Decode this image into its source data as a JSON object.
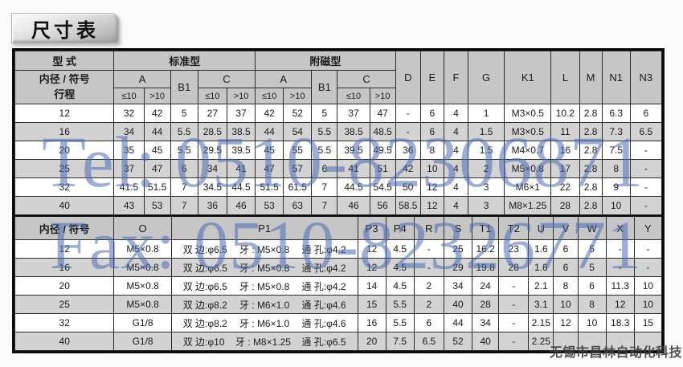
{
  "page_title": "尺寸表",
  "watermarks": {
    "tel": "Tel: 0510-82306871",
    "fax": "Fax: 0510-82326771",
    "company": "无锡市昌林自动化科技",
    "blue_color": "#4d6cb4"
  },
  "table": {
    "section1": {
      "header": {
        "type_label": "型 式",
        "bore_label": "内径 / 符号",
        "stroke_label": "行程",
        "standard_label": "标准型",
        "magnet_label": "附磁型",
        "a_label": "A",
        "b1_label": "B1",
        "c_label": "C",
        "le10": "≤10",
        "gt10": ">10",
        "simple_cols": [
          "D",
          "E",
          "F",
          "G",
          "K1",
          "L",
          "M",
          "N1",
          "N3"
        ]
      },
      "rows": [
        {
          "bore": "12",
          "cells": [
            "32",
            "42",
            "5",
            "27",
            "37",
            "42",
            "52",
            "5",
            "37",
            "47",
            "-",
            "6",
            "4",
            "1",
            "M3×0.5",
            "10.2",
            "2.8",
            "6.3",
            "6"
          ]
        },
        {
          "bore": "16",
          "cells": [
            "34",
            "44",
            "5.5",
            "28.5",
            "38.5",
            "44",
            "54",
            "5.5",
            "38.5",
            "48.5",
            "-",
            "6",
            "4",
            "1.5",
            "M3×0.5",
            "11",
            "2.8",
            "7.3",
            "6.5"
          ]
        },
        {
          "bore": "20",
          "cells": [
            "35",
            "45",
            "5.5",
            "29.5",
            "39.5",
            "45",
            "55",
            "5.5",
            "39.5",
            "49.5",
            "36",
            "8",
            "4",
            "1.5",
            "M4×0.7",
            "16",
            "2.8",
            "7.5",
            "-"
          ]
        },
        {
          "bore": "25",
          "cells": [
            "37",
            "47",
            "6",
            "34",
            "41",
            "47",
            "57",
            "6",
            "41",
            "51",
            "42",
            "10",
            "4",
            "2",
            "M5×0.8",
            "17",
            "2.8",
            "8",
            "-"
          ]
        },
        {
          "bore": "32",
          "cells": [
            "41.5",
            "51.5",
            "7",
            "34.5",
            "44.5",
            "51.5",
            "61.5",
            "7",
            "44.5",
            "54.5",
            "50",
            "12",
            "4",
            "3",
            "M6×1",
            "22",
            "2.8",
            "9",
            "-"
          ]
        },
        {
          "bore": "40",
          "cells": [
            "43",
            "53",
            "7",
            "36",
            "46",
            "53",
            "63",
            "7",
            "46",
            "56",
            "58.5",
            "12",
            "4",
            "3",
            "M8×1.25",
            "28",
            "2.8",
            "10",
            "-"
          ]
        }
      ]
    },
    "section2": {
      "header": [
        "内径 / 符号",
        "O",
        "P1",
        "P3",
        "P4",
        "R",
        "S",
        "T1",
        "T2",
        "U",
        "V",
        "W",
        "X",
        "Y"
      ],
      "rows": [
        {
          "bore": "12",
          "o": "M5×0.8",
          "p1": [
            "双 边:φ6.5",
            "牙 : M5×0.8",
            "通 孔:φ4.2"
          ],
          "cells": [
            "12",
            "4.5",
            "-",
            "25",
            "16.2",
            "23",
            "1.6",
            "6",
            "5",
            "-",
            "-"
          ]
        },
        {
          "bore": "16",
          "o": "M5×0.8",
          "p1": [
            "双 边:φ6.5",
            "牙 : M5×0.8",
            "通 孔:φ4.2"
          ],
          "cells": [
            "12",
            "4.5",
            "-",
            "29",
            "19.8",
            "28",
            "1.6",
            "6",
            "5",
            "-",
            "-"
          ]
        },
        {
          "bore": "20",
          "o": "M5×0.8",
          "p1": [
            "双 边:φ6.5",
            "牙 : M5×0.8",
            "通 孔:φ4.2"
          ],
          "cells": [
            "14",
            "4.5",
            "2",
            "34",
            "24",
            "-",
            "2.1",
            "8",
            "6",
            "11.3",
            "10"
          ]
        },
        {
          "bore": "25",
          "o": "M5×0.8",
          "p1": [
            "双 边:φ8.2",
            "牙 : M6×1.0",
            "通 孔:φ4.6"
          ],
          "cells": [
            "15",
            "5.5",
            "2",
            "40",
            "28",
            "-",
            "3.1",
            "10",
            "8",
            "12",
            "10"
          ]
        },
        {
          "bore": "32",
          "o": "G1/8",
          "p1": [
            "双 边:φ8.2",
            "牙 : M6×1.0",
            "通 孔:φ4.6"
          ],
          "cells": [
            "16",
            "5.5",
            "6",
            "44",
            "34",
            "-",
            "2.15",
            "12",
            "10",
            "18.3",
            "15"
          ]
        },
        {
          "bore": "40",
          "o": "G1/8",
          "p1": [
            "双 边:φ10",
            "牙 : M8×1.25",
            "通 孔:φ6.5"
          ],
          "cells": [
            "20",
            "7.5",
            "6.5",
            "52",
            "40",
            "-",
            "2.25",
            "",
            "",
            "",
            ""
          ]
        }
      ]
    }
  }
}
